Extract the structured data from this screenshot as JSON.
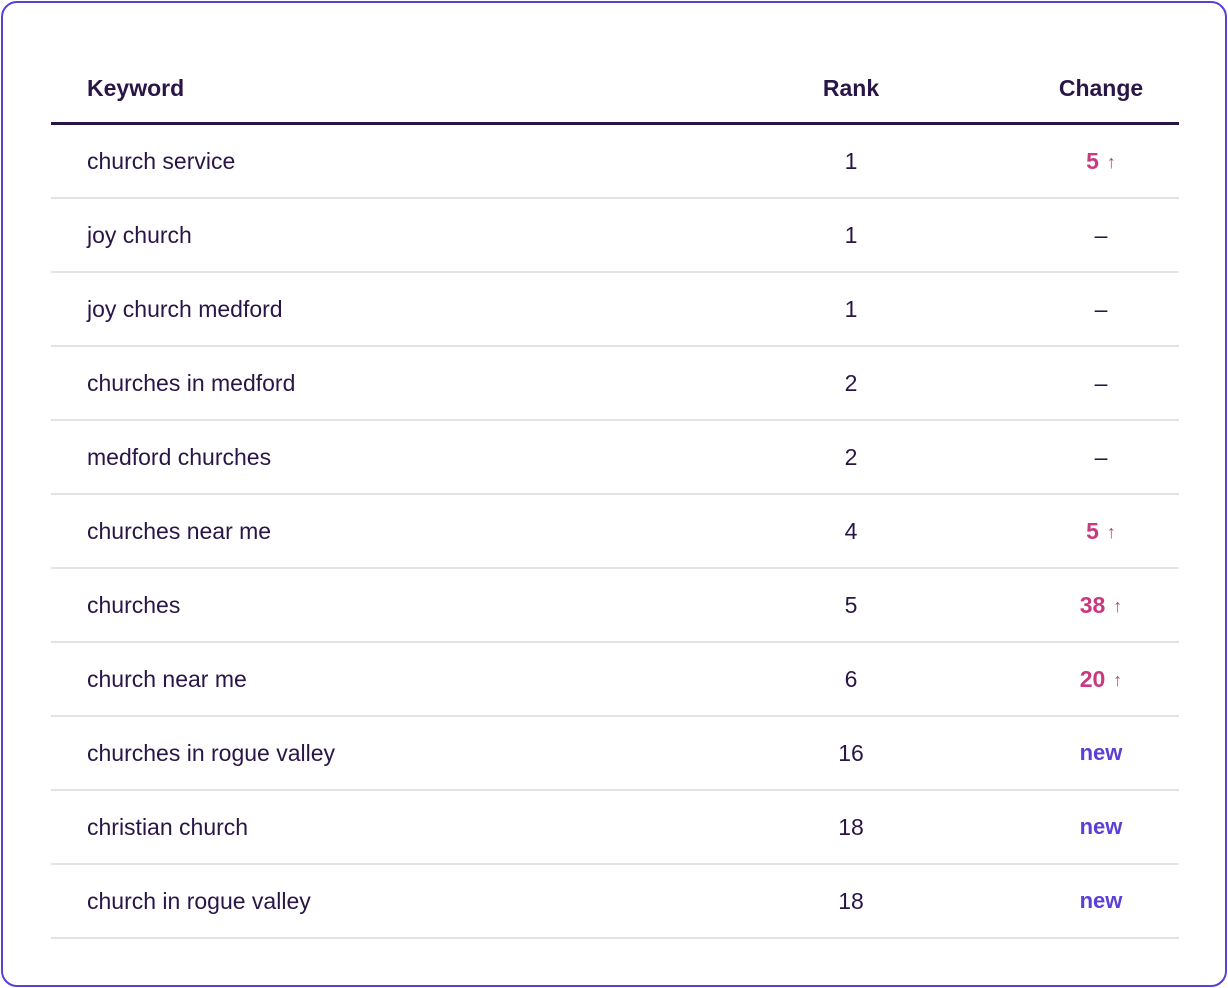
{
  "colors": {
    "border": "#5b3fd6",
    "text": "#2a1547",
    "up": "#c8397f",
    "new": "#5b3fd6",
    "divider": "#e4e1e7"
  },
  "table": {
    "headers": {
      "keyword": "Keyword",
      "rank": "Rank",
      "change": "Change"
    },
    "rows": [
      {
        "keyword": "church service",
        "rank": "1",
        "change": "5",
        "kind": "up"
      },
      {
        "keyword": "joy church",
        "rank": "1",
        "change": "–",
        "kind": "same"
      },
      {
        "keyword": "joy church medford",
        "rank": "1",
        "change": "–",
        "kind": "same"
      },
      {
        "keyword": "churches in medford",
        "rank": "2",
        "change": "–",
        "kind": "same"
      },
      {
        "keyword": "medford churches",
        "rank": "2",
        "change": "–",
        "kind": "same"
      },
      {
        "keyword": "churches near me",
        "rank": "4",
        "change": "5",
        "kind": "up"
      },
      {
        "keyword": "churches",
        "rank": "5",
        "change": "38",
        "kind": "up"
      },
      {
        "keyword": "church near me",
        "rank": "6",
        "change": "20",
        "kind": "up"
      },
      {
        "keyword": "churches in rogue valley",
        "rank": "16",
        "change": "new",
        "kind": "new"
      },
      {
        "keyword": "christian church",
        "rank": "18",
        "change": "new",
        "kind": "new"
      },
      {
        "keyword": "church in rogue valley",
        "rank": "18",
        "change": "new",
        "kind": "new"
      }
    ],
    "up_arrow_icon": "arrow-up-icon"
  }
}
